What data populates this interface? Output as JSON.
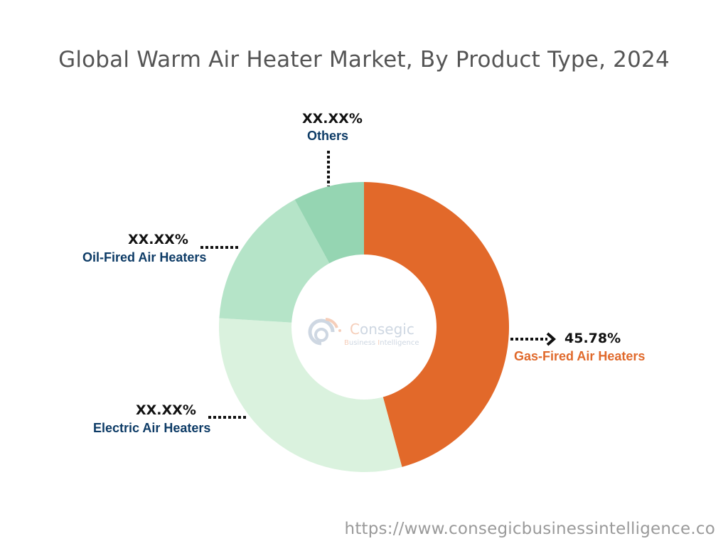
{
  "chart_data": {
    "type": "pie",
    "subtype": "donut",
    "title": "Global Warm Air Heater Market, By Product Type, 2024",
    "categories": [
      "Gas-Fired Air Heaters",
      "Electric Air Heaters",
      "Oil-Fired Air Heaters",
      "Others"
    ],
    "values": [
      45.78,
      30.2,
      16.1,
      7.92
    ],
    "value_labels": [
      "45.78%",
      "XX.XX%",
      "XX.XX%",
      "XX.XX%"
    ],
    "colors": [
      "#e2692a",
      "#daf2de",
      "#b5e4c8",
      "#95d5b2"
    ],
    "start_angle": "12 o'clock, clockwise",
    "legend": "none (direct labels with dotted leaders)"
  },
  "title": "Global Warm Air Heater Market, By Product Type, 2024",
  "labels": {
    "gas": {
      "pct": "45.78%",
      "name": "Gas-Fired Air Heaters"
    },
    "electric": {
      "pct": "XX.XX%",
      "name": "Electric Air Heaters"
    },
    "oil": {
      "pct": "XX.XX%",
      "name": "Oil-Fired Air Heaters"
    },
    "others": {
      "pct": "XX.XX%",
      "name": "Others"
    }
  },
  "watermark": {
    "name_first": "C",
    "name_rest": "onsegic",
    "sub_b": "B",
    "sub_1": "usiness ",
    "sub_i": "I",
    "sub_2": "ntelligence"
  },
  "footer": {
    "url": "https://www.consegicbusinessintelligence.co"
  },
  "colors": {
    "title": "#555555",
    "category_label": "#0d3b66",
    "highlight": "#e0692b",
    "url": "#9a9a9a"
  }
}
